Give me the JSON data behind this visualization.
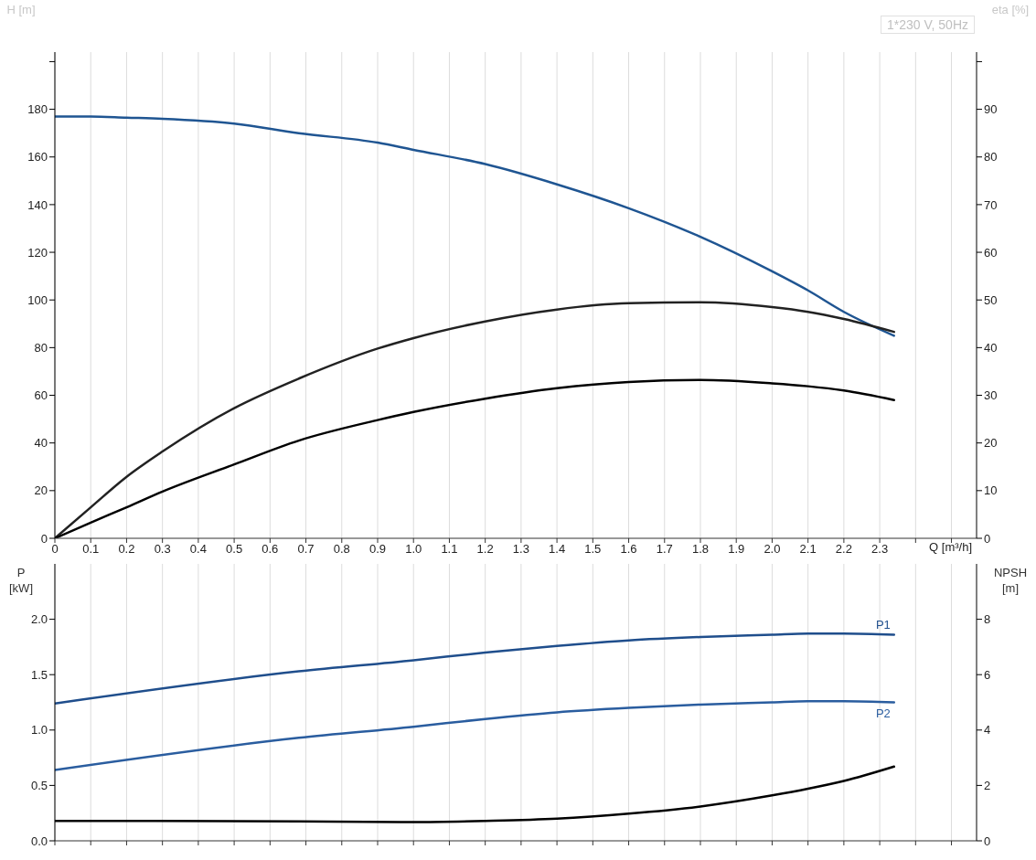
{
  "chart_data": [
    {
      "type": "line",
      "title": "1*230 V, 50Hz",
      "xlabel": "Q [m³/h]",
      "ylabel": "H [m]",
      "y2label": "eta [%]",
      "x": [
        0,
        0.1,
        0.2,
        0.3,
        0.5,
        0.68,
        0.9,
        1.0,
        1.2,
        1.4,
        1.6,
        1.8,
        2.0,
        2.1,
        2.2,
        2.34
      ],
      "series": [
        {
          "color": "#1f5592",
          "values": [
            177,
            177,
            176.5,
            176,
            174,
            170,
            166,
            163,
            157,
            148.5,
            138.5,
            126.5,
            112,
            104,
            95,
            85
          ]
        },
        {
          "color": "#222222",
          "axis": "y2",
          "values": [
            0,
            6.5,
            12.9,
            18.2,
            27.3,
            33.5,
            39.8,
            42,
            45.5,
            48,
            49.3,
            49.5,
            48.5,
            47.5,
            46,
            43.3
          ]
        },
        {
          "color": "#000000",
          "axis": "y2",
          "values": [
            0,
            3.3,
            6.5,
            9.8,
            15.5,
            20.5,
            24.8,
            26.5,
            29.3,
            31.5,
            32.8,
            33.2,
            32.5,
            31.9,
            31,
            29
          ]
        }
      ],
      "xlim": [
        0,
        2.57
      ],
      "xticks": [
        0,
        0.1,
        0.2,
        0.3,
        0.4,
        0.5,
        0.6,
        0.7,
        0.8,
        0.9,
        {
          "value": 1,
          "label": "1.0"
        },
        1.1,
        1.2,
        1.3,
        1.4,
        1.5,
        1.6,
        1.7,
        1.8,
        1.9,
        {
          "value": 2,
          "label": "2.0"
        },
        2.1,
        2.2,
        2.3,
        {
          "value": 2.4,
          "label": null
        },
        {
          "value": 2.5,
          "label": null
        }
      ],
      "ylim": [
        0,
        204
      ],
      "yticks": [
        0,
        20,
        40,
        60,
        80,
        100,
        120,
        140,
        160,
        180,
        {
          "value": 200,
          "label": null
        }
      ],
      "y2lim": [
        0,
        102
      ],
      "y2ticks": [
        0,
        10,
        20,
        30,
        40,
        50,
        60,
        70,
        80,
        90,
        {
          "value": 100,
          "label": null
        }
      ],
      "grid": true,
      "marker": "none",
      "line_style": "solid"
    },
    {
      "type": "line",
      "ylabel": "P [kW]",
      "y2label": "NPSH [m]",
      "x": [
        0,
        0.68,
        1.0,
        1.2,
        1.4,
        1.6,
        1.8,
        2.0,
        2.1,
        2.2,
        2.34
      ],
      "series": [
        {
          "name": "P1",
          "color": "#1f4e8c",
          "values": [
            1.24,
            1.53,
            1.63,
            1.7,
            1.76,
            1.81,
            1.84,
            1.86,
            1.87,
            1.87,
            1.86
          ]
        },
        {
          "name": "P2",
          "color": "#2a5d9f",
          "values": [
            0.64,
            0.93,
            1.03,
            1.1,
            1.16,
            1.2,
            1.23,
            1.25,
            1.26,
            1.26,
            1.25
          ]
        },
        {
          "color": "#000000",
          "axis": "y2",
          "values": [
            0.72,
            0.7,
            0.68,
            0.72,
            0.8,
            0.98,
            1.24,
            1.64,
            1.88,
            2.16,
            2.68
          ]
        }
      ],
      "xlim": [
        0,
        2.57
      ],
      "xticks": [
        0,
        0.1,
        0.2,
        0.3,
        0.4,
        0.5,
        0.6,
        0.7,
        0.8,
        0.9,
        1.0,
        1.1,
        1.2,
        1.3,
        1.4,
        1.5,
        1.6,
        1.7,
        1.8,
        1.9,
        2.0,
        2.1,
        2.2,
        2.3,
        2.4,
        2.5
      ],
      "ylim": [
        0,
        2.5
      ],
      "yticks": [
        {
          "value": 0,
          "label": "0.0"
        },
        0.5,
        {
          "value": 1,
          "label": "1.0"
        },
        1.5,
        {
          "value": 2,
          "label": "2.0"
        }
      ],
      "y2lim": [
        0,
        10
      ],
      "y2ticks": [
        0,
        2,
        4,
        6,
        8
      ],
      "tick_labels": "y",
      "grid": true,
      "marker": "none",
      "line_style": "solid"
    }
  ]
}
